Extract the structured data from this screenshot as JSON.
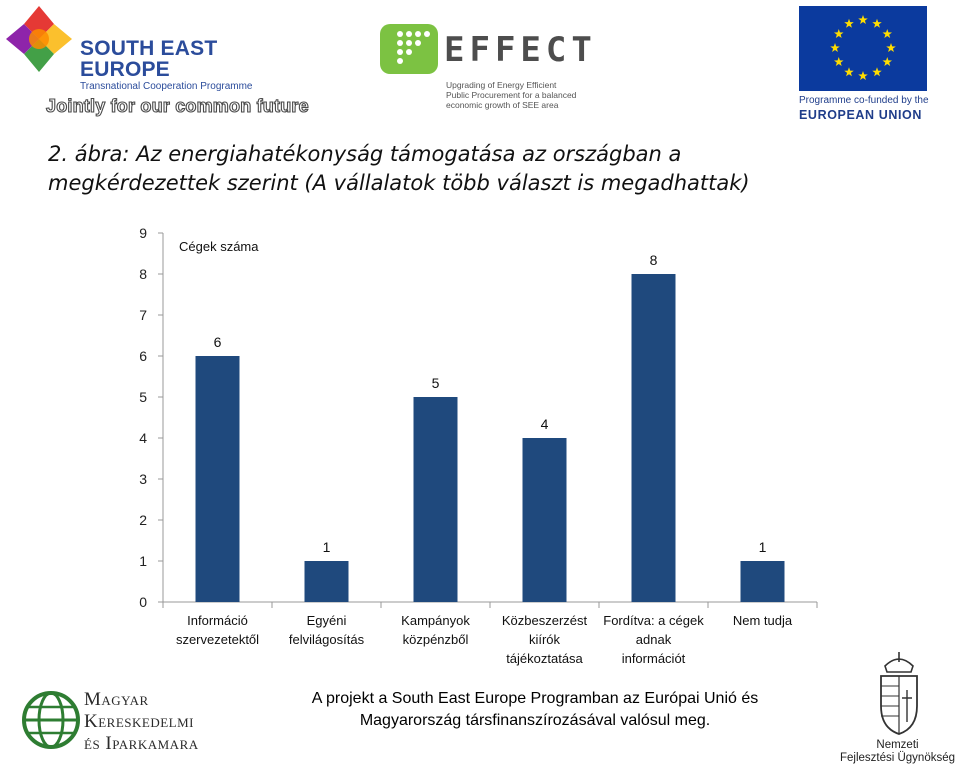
{
  "header": {
    "see_logo": {
      "line1": "SOUTH EAST",
      "line2": "EUROPE",
      "subtitle": "Transnational Cooperation Programme",
      "tagline": "Jointly for our common future"
    },
    "effect_logo": {
      "word": "EFFECT",
      "subtitle_lines": [
        "Upgrading of Energy Efficient",
        "Public Procurement for a balanced",
        "economic growth of SEE area"
      ]
    },
    "eu_logo": {
      "line1": "Programme co-funded by the",
      "line2": "EUROPEAN UNION"
    }
  },
  "title_lines": [
    "2. ábra: Az energiahatékonyság támogatása az országban a",
    "megkérdezettek szerint (A vállalatok több választ is megadhattak)"
  ],
  "chart_data": {
    "type": "bar",
    "ylabel": "Cégek száma",
    "ylim": [
      0,
      9
    ],
    "yticks": [
      0,
      1,
      2,
      3,
      4,
      5,
      6,
      7,
      8,
      9
    ],
    "grid": false,
    "categories": [
      [
        "Információ",
        "szervezetektől"
      ],
      [
        "Egyéni",
        "felvilágosítás"
      ],
      [
        "Kampányok",
        "közpénzből"
      ],
      [
        "Közbeszerzést",
        "kiírók",
        "tájékoztatása"
      ],
      [
        "Fordítva: a cégek",
        "adnak",
        "információt"
      ],
      [
        "Nem tudja"
      ]
    ],
    "values": [
      6,
      1,
      5,
      4,
      8,
      1
    ],
    "bar_color": "#1f497d"
  },
  "footer": {
    "mkik_logo": {
      "lines": [
        "Magyar",
        "Kereskedelmi",
        "és Iparkamara"
      ]
    },
    "note_lines": [
      "A projekt a South East Europe Programban az Európai Unió és",
      "Magyarország társfinanszírozásával valósul meg."
    ],
    "nfu_logo": {
      "lines": [
        "Nemzeti",
        "Fejlesztési Ügynökség"
      ]
    }
  }
}
